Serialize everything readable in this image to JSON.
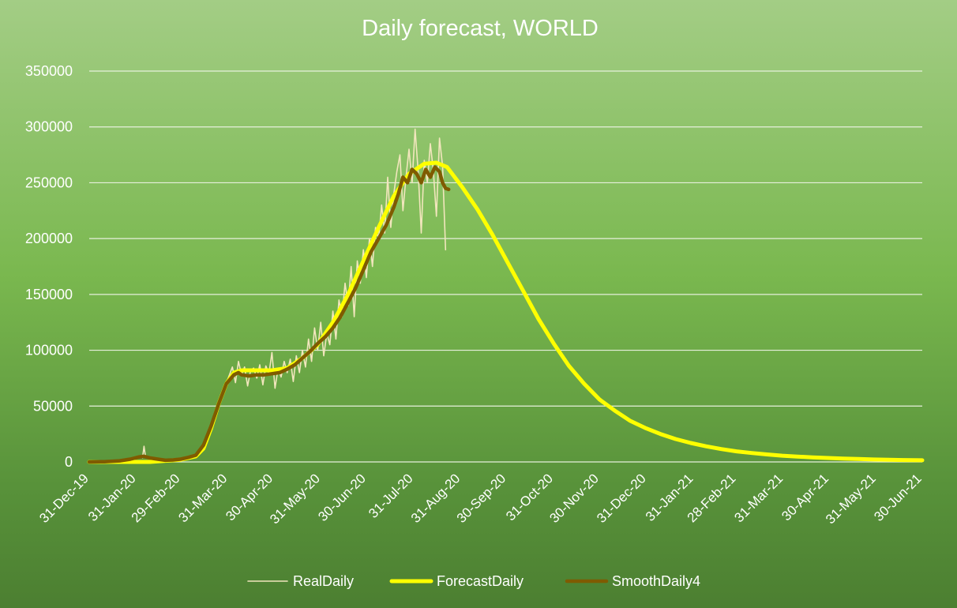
{
  "chart_data": {
    "type": "line",
    "title": "Daily forecast, WORLD",
    "xlabel": "",
    "ylabel": "",
    "ylim": [
      0,
      350000
    ],
    "yticks": [
      0,
      50000,
      100000,
      150000,
      200000,
      250000,
      300000,
      350000
    ],
    "y_tick_labels": [
      "0",
      "50000",
      "100000",
      "150000",
      "200000",
      "250000",
      "300000",
      "350000"
    ],
    "x_domain_days": [
      0,
      547
    ],
    "x_ticks": [
      {
        "day": 0,
        "label": "31-Dec-19"
      },
      {
        "day": 31,
        "label": "31-Jan-20"
      },
      {
        "day": 60,
        "label": "29-Feb-20"
      },
      {
        "day": 91,
        "label": "31-Mar-20"
      },
      {
        "day": 121,
        "label": "30-Apr-20"
      },
      {
        "day": 152,
        "label": "31-May-20"
      },
      {
        "day": 182,
        "label": "30-Jun-20"
      },
      {
        "day": 213,
        "label": "31-Jul-20"
      },
      {
        "day": 244,
        "label": "31-Aug-20"
      },
      {
        "day": 274,
        "label": "30-Sep-20"
      },
      {
        "day": 305,
        "label": "31-Oct-20"
      },
      {
        "day": 335,
        "label": "30-Nov-20"
      },
      {
        "day": 366,
        "label": "31-Dec-20"
      },
      {
        "day": 397,
        "label": "31-Jan-21"
      },
      {
        "day": 425,
        "label": "28-Feb-21"
      },
      {
        "day": 456,
        "label": "31-Mar-21"
      },
      {
        "day": 486,
        "label": "30-Apr-21"
      },
      {
        "day": 517,
        "label": "31-May-21"
      },
      {
        "day": 547,
        "label": "30-Jun-21"
      }
    ],
    "grid": true,
    "legend_position": "bottom",
    "series": [
      {
        "name": "RealDaily",
        "color": "#f2e6bd",
        "points": [
          [
            0,
            0
          ],
          [
            10,
            300
          ],
          [
            20,
            1500
          ],
          [
            27,
            3000
          ],
          [
            33,
            5000
          ],
          [
            35,
            3500
          ],
          [
            36,
            14000
          ],
          [
            37,
            4000
          ],
          [
            40,
            3500
          ],
          [
            45,
            3000
          ],
          [
            50,
            1500
          ],
          [
            55,
            1500
          ],
          [
            60,
            2000
          ],
          [
            65,
            3000
          ],
          [
            70,
            5000
          ],
          [
            75,
            15000
          ],
          [
            80,
            30000
          ],
          [
            85,
            50000
          ],
          [
            88,
            60000
          ],
          [
            91,
            74000
          ],
          [
            94,
            85000
          ],
          [
            96,
            71000
          ],
          [
            98,
            90000
          ],
          [
            100,
            78000
          ],
          [
            102,
            85000
          ],
          [
            104,
            68000
          ],
          [
            106,
            82000
          ],
          [
            108,
            84000
          ],
          [
            110,
            75000
          ],
          [
            112,
            87000
          ],
          [
            114,
            69000
          ],
          [
            116,
            86000
          ],
          [
            118,
            79000
          ],
          [
            120,
            98000
          ],
          [
            122,
            66000
          ],
          [
            124,
            84000
          ],
          [
            126,
            76000
          ],
          [
            128,
            90000
          ],
          [
            130,
            80000
          ],
          [
            132,
            92000
          ],
          [
            134,
            72000
          ],
          [
            136,
            95000
          ],
          [
            138,
            80000
          ],
          [
            140,
            100000
          ],
          [
            142,
            85000
          ],
          [
            144,
            110000
          ],
          [
            146,
            90000
          ],
          [
            148,
            120000
          ],
          [
            150,
            100000
          ],
          [
            152,
            125000
          ],
          [
            154,
            95000
          ],
          [
            156,
            115000
          ],
          [
            158,
            105000
          ],
          [
            160,
            135000
          ],
          [
            162,
            110000
          ],
          [
            164,
            145000
          ],
          [
            166,
            130000
          ],
          [
            168,
            160000
          ],
          [
            170,
            140000
          ],
          [
            172,
            175000
          ],
          [
            174,
            130000
          ],
          [
            176,
            180000
          ],
          [
            178,
            160000
          ],
          [
            180,
            190000
          ],
          [
            182,
            165000
          ],
          [
            184,
            200000
          ],
          [
            186,
            175000
          ],
          [
            188,
            210000
          ],
          [
            190,
            200000
          ],
          [
            192,
            230000
          ],
          [
            194,
            205000
          ],
          [
            196,
            255000
          ],
          [
            198,
            210000
          ],
          [
            200,
            240000
          ],
          [
            202,
            260000
          ],
          [
            204,
            275000
          ],
          [
            206,
            225000
          ],
          [
            208,
            255000
          ],
          [
            210,
            280000
          ],
          [
            212,
            250000
          ],
          [
            214,
            298000
          ],
          [
            216,
            260000
          ],
          [
            218,
            205000
          ],
          [
            220,
            270000
          ],
          [
            222,
            250000
          ],
          [
            224,
            285000
          ],
          [
            226,
            260000
          ],
          [
            228,
            220000
          ],
          [
            230,
            290000
          ],
          [
            232,
            265000
          ],
          [
            234,
            190000
          ]
        ]
      },
      {
        "name": "ForecastDaily",
        "color": "#ffff00",
        "points": [
          [
            0,
            0
          ],
          [
            40,
            0
          ],
          [
            60,
            2000
          ],
          [
            70,
            5000
          ],
          [
            75,
            12000
          ],
          [
            80,
            30000
          ],
          [
            85,
            52000
          ],
          [
            90,
            70000
          ],
          [
            95,
            80000
          ],
          [
            100,
            82000
          ],
          [
            110,
            82000
          ],
          [
            120,
            82000
          ],
          [
            130,
            84000
          ],
          [
            140,
            93000
          ],
          [
            150,
            105000
          ],
          [
            160,
            125000
          ],
          [
            170,
            150000
          ],
          [
            180,
            180000
          ],
          [
            190,
            210000
          ],
          [
            200,
            238000
          ],
          [
            210,
            258000
          ],
          [
            220,
            267000
          ],
          [
            228,
            268000
          ],
          [
            235,
            264000
          ],
          [
            245,
            246000
          ],
          [
            255,
            226000
          ],
          [
            265,
            203000
          ],
          [
            275,
            178000
          ],
          [
            285,
            153000
          ],
          [
            295,
            128000
          ],
          [
            305,
            106000
          ],
          [
            315,
            86000
          ],
          [
            325,
            70000
          ],
          [
            335,
            56000
          ],
          [
            345,
            46000
          ],
          [
            355,
            37000
          ],
          [
            365,
            30500
          ],
          [
            375,
            25000
          ],
          [
            385,
            20500
          ],
          [
            395,
            17000
          ],
          [
            405,
            14000
          ],
          [
            415,
            11500
          ],
          [
            425,
            9500
          ],
          [
            435,
            8000
          ],
          [
            445,
            6700
          ],
          [
            455,
            5600
          ],
          [
            465,
            4800
          ],
          [
            475,
            4100
          ],
          [
            485,
            3500
          ],
          [
            495,
            3000
          ],
          [
            505,
            2600
          ],
          [
            515,
            2200
          ],
          [
            525,
            1900
          ],
          [
            535,
            1700
          ],
          [
            547,
            1500
          ]
        ]
      },
      {
        "name": "SmoothDaily4",
        "color": "#7f5b00",
        "points": [
          [
            0,
            0
          ],
          [
            10,
            200
          ],
          [
            20,
            1000
          ],
          [
            27,
            2500
          ],
          [
            33,
            4500
          ],
          [
            36,
            5000
          ],
          [
            40,
            3500
          ],
          [
            45,
            2500
          ],
          [
            50,
            1500
          ],
          [
            55,
            1800
          ],
          [
            60,
            2500
          ],
          [
            65,
            4000
          ],
          [
            70,
            6000
          ],
          [
            75,
            15000
          ],
          [
            80,
            32000
          ],
          [
            85,
            52000
          ],
          [
            90,
            70000
          ],
          [
            95,
            78000
          ],
          [
            98,
            80000
          ],
          [
            100,
            78000
          ],
          [
            105,
            77000
          ],
          [
            110,
            78000
          ],
          [
            115,
            78000
          ],
          [
            120,
            79000
          ],
          [
            125,
            80000
          ],
          [
            130,
            83000
          ],
          [
            135,
            87000
          ],
          [
            140,
            93000
          ],
          [
            145,
            99000
          ],
          [
            150,
            106000
          ],
          [
            155,
            112000
          ],
          [
            160,
            120000
          ],
          [
            165,
            130000
          ],
          [
            170,
            143000
          ],
          [
            175,
            156000
          ],
          [
            180,
            172000
          ],
          [
            185,
            188000
          ],
          [
            190,
            200000
          ],
          [
            195,
            212000
          ],
          [
            200,
            228000
          ],
          [
            203,
            240000
          ],
          [
            206,
            255000
          ],
          [
            209,
            250000
          ],
          [
            212,
            262000
          ],
          [
            215,
            258000
          ],
          [
            218,
            250000
          ],
          [
            221,
            262000
          ],
          [
            224,
            255000
          ],
          [
            227,
            264000
          ],
          [
            230,
            260000
          ],
          [
            232,
            250000
          ],
          [
            234,
            245000
          ],
          [
            236,
            244000
          ]
        ]
      }
    ]
  }
}
